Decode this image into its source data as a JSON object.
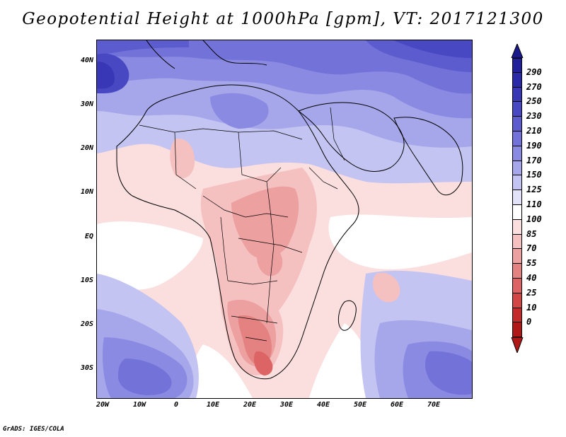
{
  "title": "Geopotential Height at 1000hPa [gpm], VT: 2017121300",
  "credit": "GrADS: IGES/COLA",
  "map": {
    "lat_labels": [
      "40N",
      "30N",
      "20N",
      "10N",
      "EQ",
      "10S",
      "20S",
      "30S"
    ],
    "lon_labels": [
      "20W",
      "10W",
      "0",
      "10E",
      "20E",
      "30E",
      "40E",
      "50E",
      "60E",
      "70E"
    ],
    "extent": {
      "lon_min": -22,
      "lon_max": 80,
      "lat_min": -36,
      "lat_max": 44
    }
  },
  "colorbar": {
    "labels": [
      "290",
      "270",
      "250",
      "230",
      "210",
      "190",
      "170",
      "150",
      "125",
      "110",
      "100",
      "85",
      "70",
      "55",
      "40",
      "25",
      "10",
      "0"
    ],
    "colors": [
      "#20209a",
      "#2a2aa8",
      "#3838b6",
      "#4848c2",
      "#5c5cce",
      "#7272d8",
      "#8a8ae2",
      "#a6a6ea",
      "#c4c4f2",
      "#e2e2f8",
      "#ffffff",
      "#fbdede",
      "#f5c0c0",
      "#eda0a0",
      "#e48282",
      "#dc6464",
      "#d24646",
      "#c42a2a",
      "#b01818"
    ]
  }
}
